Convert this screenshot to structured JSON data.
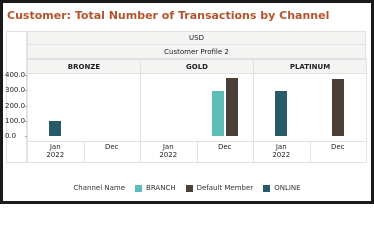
{
  "chart_data": {
    "type": "bar",
    "title": "Customer: Total Number of Transactions by Channel",
    "header": "USD",
    "subheader": "Customer Profile 2",
    "panels": [
      "BRONZE",
      "GOLD",
      "PLATINUM"
    ],
    "categories": [
      "Jan 2022",
      "Dec"
    ],
    "series": [
      {
        "name": "BRANCH",
        "color": "#5cbdb9",
        "values": [
          [
            null,
            null
          ],
          [
            null,
            295
          ],
          [
            null,
            null
          ]
        ]
      },
      {
        "name": "Default Member",
        "color": "#4b4038",
        "values": [
          [
            null,
            null
          ],
          [
            null,
            380
          ],
          [
            null,
            375
          ]
        ]
      },
      {
        "name": "ONLINE",
        "color": "#275b67",
        "values": [
          [
            100,
            null
          ],
          [
            null,
            null
          ],
          [
            295,
            null
          ]
        ]
      }
    ],
    "ylim": [
      0,
      400
    ],
    "yticks": [
      {
        "value": 0,
        "label": "0.0"
      },
      {
        "value": 100,
        "label": "100.0"
      },
      {
        "value": 200,
        "label": "200.0"
      },
      {
        "value": 300,
        "label": "300.0"
      },
      {
        "value": 400,
        "label": "400.0"
      }
    ],
    "legend_title": "Channel Name"
  }
}
